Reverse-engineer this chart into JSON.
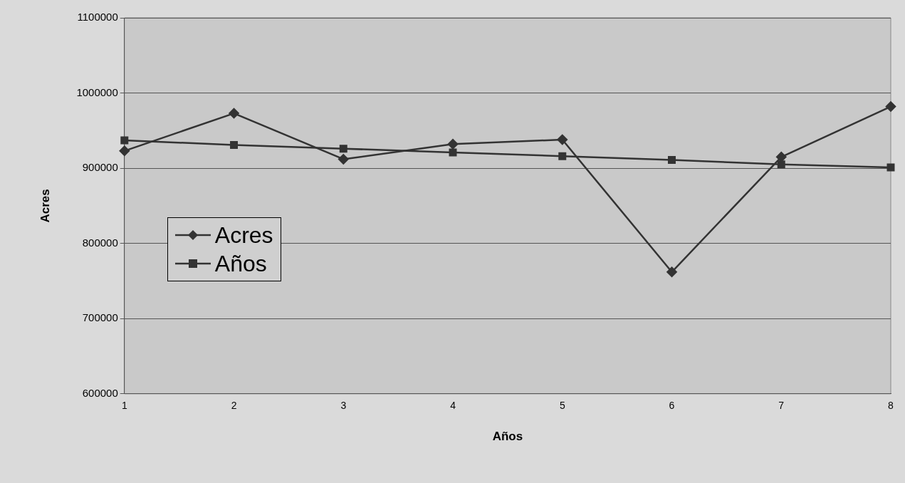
{
  "chart_data": {
    "type": "line",
    "xlabel": "Años",
    "ylabel": "Acres",
    "categories": [
      "1",
      "2",
      "3",
      "4",
      "5",
      "6",
      "7",
      "8"
    ],
    "series": [
      {
        "name": "Acres",
        "color": "#333333",
        "marker": "diamond",
        "values": [
          923000,
          973000,
          912000,
          932000,
          938000,
          762000,
          915000,
          982000
        ]
      },
      {
        "name": "Años",
        "color": "#333333",
        "marker": "square",
        "values": [
          937000,
          931000,
          926000,
          921000,
          916000,
          911000,
          905000,
          901000
        ]
      }
    ],
    "ylim": [
      600000,
      1100000
    ],
    "yticks": [
      600000,
      700000,
      800000,
      900000,
      1000000,
      1100000
    ],
    "grid": "y",
    "legend": "bottom left"
  }
}
